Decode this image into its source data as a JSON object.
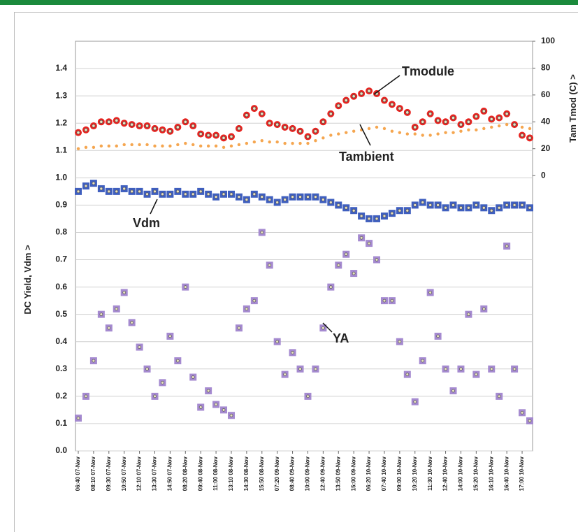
{
  "chart_data": {
    "type": "scatter",
    "y_label": "DC Yield, Vdm >",
    "y2_label": "Tam Tmod (C) >",
    "ylim": [
      0,
      1.5
    ],
    "yticks": [
      {
        "value": 0,
        "label": "0.0"
      },
      0.1,
      0.2,
      0.3,
      0.4,
      0.5,
      0.6,
      0.7,
      0.8,
      0.9,
      {
        "value": 1,
        "label": "1.0"
      },
      1.1,
      1.2,
      1.3,
      1.4
    ],
    "y2lim": [
      -205,
      100
    ],
    "y2ticks": [
      0,
      20,
      40,
      60,
      80,
      100
    ],
    "grid": true,
    "categories": [
      "06:40 07-Nov",
      null,
      "08:10 07-Nov",
      null,
      "09:30 07-Nov",
      null,
      "10:50 07-Nov",
      null,
      "12:10 07-Nov",
      null,
      "13:30 07-Nov",
      null,
      "14:50 07-Nov",
      null,
      "08:20 08-Nov",
      null,
      "09:40 08-Nov",
      null,
      "11:00 08-Nov",
      null,
      "13:10 08-Nov",
      null,
      "14:30 08-Nov",
      null,
      "15:50 08-Nov",
      null,
      "07:20 09-Nov",
      null,
      "08:40 09-Nov",
      null,
      "10:00 09-Nov",
      null,
      "12:40 09-Nov",
      null,
      "13:50 09-Nov",
      null,
      "15:00 09-Nov",
      null,
      "06:20 10-Nov",
      null,
      "07:40 10-Nov",
      null,
      "09:00 10-Nov",
      null,
      "10:20 10-Nov",
      null,
      "11:30 10-Nov",
      null,
      "12:40 10-Nov",
      null,
      "14:00 10-Nov",
      null,
      "15:20 10-Nov",
      null,
      "16:10 10-Nov",
      null,
      "16:40 10-Nov",
      null,
      "17:00 10-Nov",
      null
    ],
    "series": [
      {
        "name": "Tmodule",
        "color": "#e8231f",
        "axis": "y2",
        "marker": "circle",
        "values": [
          32,
          34,
          37,
          40,
          40,
          41,
          39,
          38,
          37,
          37,
          35,
          34,
          33,
          36,
          40,
          37,
          31,
          30,
          30,
          28,
          29,
          35,
          45,
          50,
          46,
          39,
          38,
          36,
          35,
          33,
          29,
          33,
          40,
          46,
          52,
          56,
          59,
          61,
          63,
          61,
          56,
          53,
          50,
          47,
          36,
          40,
          46,
          41,
          40,
          43,
          38,
          40,
          44,
          48,
          42,
          43,
          46,
          38,
          30,
          28
        ]
      },
      {
        "name": "Tambient",
        "color": "#f5a650",
        "axis": "y2",
        "marker": "dot",
        "values": [
          20,
          21,
          21,
          22,
          22,
          22,
          23,
          23,
          23,
          23,
          22,
          22,
          22,
          23,
          24,
          23,
          22,
          22,
          22,
          21,
          22,
          23,
          24,
          25,
          26,
          25,
          25,
          24,
          24,
          24,
          24,
          26,
          28,
          30,
          31,
          32,
          33,
          34,
          35,
          36,
          35,
          33,
          32,
          31,
          31,
          30,
          30,
          31,
          32,
          32,
          33,
          34,
          34,
          35,
          36,
          37,
          38,
          37,
          36,
          35
        ]
      },
      {
        "name": "Vdm",
        "color": "#3f5fbf",
        "marker": "square",
        "values": [
          0.95,
          0.97,
          0.98,
          0.96,
          0.95,
          0.95,
          0.96,
          0.95,
          0.95,
          0.94,
          0.95,
          0.94,
          0.94,
          0.95,
          0.94,
          0.94,
          0.95,
          0.94,
          0.93,
          0.94,
          0.94,
          0.93,
          0.92,
          0.94,
          0.93,
          0.92,
          0.91,
          0.92,
          0.93,
          0.93,
          0.93,
          0.93,
          0.92,
          0.91,
          0.9,
          0.89,
          0.88,
          0.86,
          0.85,
          0.85,
          0.86,
          0.87,
          0.88,
          0.88,
          0.9,
          0.91,
          0.9,
          0.9,
          0.89,
          0.9,
          0.89,
          0.89,
          0.9,
          0.89,
          0.88,
          0.89,
          0.9,
          0.9,
          0.9,
          0.89
        ]
      },
      {
        "name": "YA",
        "color": "#a58ad0",
        "marker": "square",
        "values": [
          0.12,
          0.2,
          0.33,
          0.5,
          0.45,
          0.52,
          0.58,
          0.47,
          0.38,
          0.3,
          0.2,
          0.25,
          0.42,
          0.33,
          0.6,
          0.27,
          0.16,
          0.22,
          0.17,
          0.15,
          0.13,
          0.45,
          0.52,
          0.55,
          0.8,
          0.68,
          0.4,
          0.28,
          0.36,
          0.3,
          0.2,
          0.3,
          0.45,
          0.6,
          0.68,
          0.72,
          0.65,
          0.78,
          0.76,
          0.7,
          0.55,
          0.55,
          0.4,
          0.28,
          0.18,
          0.33,
          0.58,
          0.42,
          0.3,
          0.22,
          0.3,
          0.5,
          0.28,
          0.52,
          0.3,
          0.2,
          0.75,
          0.3,
          0.14,
          0.11
        ]
      }
    ]
  }
}
